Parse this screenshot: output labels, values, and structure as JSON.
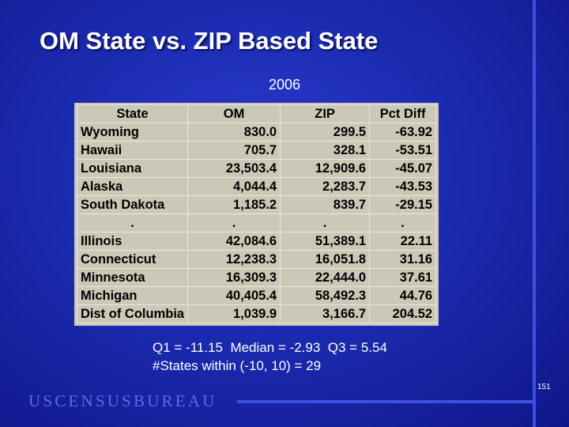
{
  "title": "OM State vs. ZIP Based State",
  "subtitle": "2006",
  "table": {
    "headers": [
      "State",
      "OM",
      "ZIP",
      "Pct Diff"
    ],
    "rows": [
      [
        "Wyoming",
        "830.0",
        "299.5",
        "-63.92"
      ],
      [
        "Hawaii",
        "705.7",
        "328.1",
        "-53.51"
      ],
      [
        "Louisiana",
        "23,503.4",
        "12,909.6",
        "-45.07"
      ],
      [
        "Alaska",
        "4,044.4",
        "2,283.7",
        "-43.53"
      ],
      [
        "South Dakota",
        "1,185.2",
        "839.7",
        "-29.15"
      ],
      [
        ".",
        ".",
        ".",
        "."
      ],
      [
        "Illinois",
        "42,084.6",
        "51,389.1",
        "22.11"
      ],
      [
        "Connecticut",
        "12,238.3",
        "16,051.8",
        "31.16"
      ],
      [
        "Minnesota",
        "16,309.3",
        "22,444.0",
        "37.61"
      ],
      [
        "Michigan",
        "40,405.4",
        "58,492.3",
        "44.76"
      ],
      [
        "Dist of Columbia",
        "1,039.9",
        "3,166.7",
        "204.52"
      ]
    ]
  },
  "stats": {
    "line1": "Q1 = -11.15  Median = -2.93  Q3 = 5.54",
    "line2": "#States within (-10, 10) = 29"
  },
  "page_number": "151",
  "logo_text": "USCENSUSBUREAU",
  "colors": {
    "background": "#1b2bb0",
    "accent_rule": "#3d4fe0",
    "logo": "#5a6ae8",
    "table_bg": "#ccc8b8"
  }
}
